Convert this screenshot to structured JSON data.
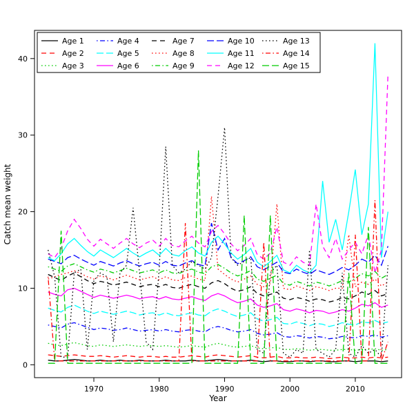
{
  "chart_data": {
    "type": "line",
    "title": "",
    "xlabel": "Year",
    "ylabel": "Catch mean weight",
    "xlim": [
      1963,
      2015
    ],
    "ylim": [
      0,
      42
    ],
    "xticks": [
      1970,
      1980,
      1990,
      2000,
      2010
    ],
    "yticks": [
      0,
      10,
      20,
      30,
      40
    ],
    "grid": false,
    "legend_position": "top-left",
    "legend_columns": 5,
    "x": [
      1963,
      1964,
      1965,
      1966,
      1967,
      1968,
      1969,
      1970,
      1971,
      1972,
      1973,
      1974,
      1975,
      1976,
      1977,
      1978,
      1979,
      1980,
      1981,
      1982,
      1983,
      1984,
      1985,
      1986,
      1987,
      1988,
      1989,
      1990,
      1991,
      1992,
      1993,
      1994,
      1995,
      1996,
      1997,
      1998,
      1999,
      2000,
      2001,
      2002,
      2003,
      2004,
      2005,
      2006,
      2007,
      2008,
      2009,
      2010,
      2011,
      2012,
      2013,
      2014,
      2015
    ],
    "series": [
      {
        "name": "Age 1",
        "color": "#000000",
        "linestyle": "solid",
        "values": [
          0.6,
          0.5,
          0.5,
          0.6,
          0.7,
          0.6,
          0.5,
          0.5,
          0.6,
          0.5,
          0.5,
          0.6,
          0.5,
          0.5,
          0.6,
          0.5,
          0.5,
          0.5,
          0.6,
          0.5,
          0.5,
          0.5,
          0.6,
          0.5,
          0.5,
          0.6,
          0.7,
          0.6,
          0.5,
          0.5,
          0.5,
          0.6,
          0.5,
          0.4,
          0.5,
          0.5,
          0.4,
          0.4,
          0.5,
          0.5,
          0.4,
          0.5,
          0.5,
          0.4,
          0.4,
          0.5,
          0.5,
          0.4,
          0.5,
          0.5,
          0.5,
          0.4,
          0.5
        ]
      },
      {
        "name": "Age 2",
        "color": "#FF0000",
        "linestyle": "dashed",
        "values": [
          1.3,
          1.2,
          1.1,
          1.2,
          1.3,
          1.2,
          1.1,
          1.1,
          1.2,
          1.1,
          1.0,
          1.1,
          1.2,
          1.1,
          1.0,
          1.1,
          1.1,
          1.0,
          1.1,
          1.0,
          1.0,
          1.1,
          1.2,
          1.1,
          1.0,
          1.2,
          1.3,
          1.2,
          1.1,
          1.0,
          1.1,
          1.2,
          1.0,
          0.9,
          1.0,
          1.1,
          0.9,
          0.9,
          1.0,
          0.9,
          0.9,
          1.0,
          0.9,
          0.8,
          0.9,
          1.0,
          0.9,
          0.9,
          1.0,
          0.9,
          1.0,
          0.9,
          1.0
        ]
      },
      {
        "name": "Age 3",
        "color": "#00CC00",
        "linestyle": "dotted",
        "values": [
          2.8,
          2.6,
          2.5,
          2.7,
          2.9,
          2.7,
          2.5,
          2.4,
          2.6,
          2.5,
          2.4,
          2.5,
          2.6,
          2.5,
          2.4,
          2.5,
          2.5,
          2.4,
          2.5,
          2.4,
          2.3,
          2.4,
          2.5,
          2.4,
          2.3,
          2.6,
          2.8,
          2.6,
          2.4,
          2.3,
          2.4,
          2.5,
          2.2,
          2.1,
          2.2,
          2.3,
          2.0,
          2.0,
          2.1,
          2.0,
          1.9,
          2.0,
          2.0,
          1.9,
          1.9,
          2.0,
          2.0,
          1.9,
          2.0,
          2.0,
          2.1,
          1.9,
          2.0
        ]
      },
      {
        "name": "Age 4",
        "color": "#0000FF",
        "linestyle": "dotdash",
        "values": [
          5.2,
          5.0,
          4.8,
          5.3,
          5.5,
          5.2,
          4.9,
          4.6,
          4.8,
          4.7,
          4.5,
          4.6,
          4.8,
          4.6,
          4.4,
          4.5,
          4.6,
          4.4,
          4.6,
          4.4,
          4.3,
          4.5,
          4.6,
          4.4,
          4.3,
          4.8,
          5.0,
          4.8,
          4.5,
          4.3,
          4.4,
          4.6,
          4.1,
          3.9,
          4.0,
          4.2,
          3.7,
          3.6,
          3.8,
          3.7,
          3.5,
          3.7,
          3.6,
          3.4,
          3.5,
          3.7,
          3.6,
          3.5,
          3.8,
          3.7,
          3.9,
          3.6,
          3.8
        ]
      },
      {
        "name": "Age 5",
        "color": "#00FFFF",
        "linestyle": "longdash",
        "values": [
          7.4,
          7.1,
          6.9,
          7.5,
          7.8,
          7.4,
          7.0,
          6.7,
          7.0,
          6.8,
          6.6,
          6.8,
          7.0,
          6.8,
          6.5,
          6.7,
          6.8,
          6.5,
          6.8,
          6.5,
          6.4,
          6.6,
          6.8,
          6.5,
          6.4,
          7.0,
          7.3,
          7.0,
          6.6,
          6.3,
          6.5,
          6.8,
          6.0,
          5.7,
          5.9,
          6.2,
          5.4,
          5.3,
          5.6,
          5.4,
          5.1,
          5.4,
          5.3,
          5.0,
          5.2,
          5.5,
          5.3,
          5.2,
          5.6,
          5.5,
          5.8,
          5.4,
          5.6
        ]
      },
      {
        "name": "Age 6",
        "color": "#FF00FF",
        "linestyle": "solid",
        "values": [
          9.5,
          9.2,
          9.0,
          9.8,
          10.0,
          9.6,
          9.2,
          8.8,
          9.1,
          8.9,
          8.7,
          8.9,
          9.1,
          8.9,
          8.6,
          8.8,
          8.9,
          8.6,
          8.9,
          8.6,
          8.5,
          8.7,
          8.9,
          8.6,
          8.4,
          9.0,
          9.3,
          9.0,
          8.5,
          8.1,
          8.3,
          8.6,
          7.8,
          7.5,
          7.7,
          8.0,
          7.2,
          7.0,
          7.3,
          7.1,
          6.8,
          7.1,
          7.0,
          6.7,
          6.9,
          7.2,
          7.0,
          7.4,
          7.9,
          7.7,
          8.1,
          7.5,
          7.8
        ]
      },
      {
        "name": "Age 7",
        "color": "#000000",
        "linestyle": "dashed",
        "values": [
          11.8,
          11.4,
          11.0,
          11.6,
          12.0,
          11.5,
          11.0,
          10.6,
          10.9,
          10.7,
          10.4,
          10.6,
          10.8,
          10.5,
          10.2,
          10.4,
          10.5,
          10.2,
          10.5,
          10.1,
          10.0,
          10.3,
          10.5,
          10.2,
          10.0,
          10.7,
          11.0,
          10.6,
          10.0,
          9.6,
          9.8,
          10.2,
          9.3,
          9.0,
          9.2,
          9.5,
          8.7,
          8.5,
          8.8,
          8.6,
          8.3,
          8.6,
          8.5,
          8.2,
          8.4,
          8.8,
          8.6,
          9.0,
          9.5,
          9.2,
          9.7,
          9.0,
          9.3
        ]
      },
      {
        "name": "Age 8",
        "color": "#FF0000",
        "linestyle": "dotted",
        "values": [
          11.2,
          11.5,
          11.8,
          12.0,
          12.3,
          11.9,
          11.5,
          11.2,
          11.6,
          11.4,
          11.1,
          11.4,
          11.7,
          11.4,
          11.1,
          11.3,
          11.5,
          11.1,
          11.5,
          11.1,
          11.0,
          11.4,
          11.6,
          11.2,
          11.0,
          22.0,
          12.5,
          11.8,
          11.2,
          10.8,
          11.2,
          11.6,
          10.5,
          10.2,
          10.6,
          21.0,
          10.0,
          9.8,
          10.3,
          10.0,
          9.7,
          10.2,
          10.0,
          9.7,
          10.0,
          10.0,
          17.0,
          10.2,
          10.8,
          10.5,
          11.2,
          10.3,
          10.8
        ]
      },
      {
        "name": "Age 9",
        "color": "#00CC00",
        "linestyle": "dotdash",
        "values": [
          12.8,
          12.5,
          12.2,
          12.9,
          13.2,
          12.8,
          12.4,
          12.1,
          12.5,
          12.3,
          12.0,
          12.3,
          12.6,
          12.3,
          12.0,
          12.2,
          12.4,
          12.0,
          12.4,
          12.0,
          11.9,
          12.3,
          12.5,
          12.1,
          11.9,
          12.8,
          13.1,
          12.6,
          12.0,
          11.6,
          11.9,
          12.3,
          11.2,
          10.9,
          11.3,
          11.7,
          10.6,
          10.4,
          10.9,
          10.6,
          10.3,
          10.8,
          10.6,
          10.3,
          10.6,
          11.0,
          10.8,
          11.3,
          11.9,
          11.6,
          12.2,
          11.3,
          11.8
        ]
      },
      {
        "name": "Age 10",
        "color": "#0000FF",
        "linestyle": "longdash",
        "values": [
          13.8,
          13.5,
          13.2,
          14.0,
          14.3,
          13.8,
          13.4,
          13.0,
          13.5,
          13.2,
          12.9,
          13.3,
          13.6,
          13.2,
          12.9,
          13.2,
          13.4,
          13.0,
          13.5,
          13.0,
          12.9,
          13.3,
          13.6,
          13.1,
          12.9,
          18.5,
          15.0,
          16.5,
          14.0,
          13.2,
          13.6,
          14.1,
          12.8,
          12.4,
          12.9,
          13.4,
          12.1,
          11.9,
          12.5,
          12.1,
          11.8,
          12.4,
          12.1,
          11.8,
          12.2,
          12.7,
          12.4,
          13.0,
          13.8,
          13.4,
          14.3,
          13.0,
          15.5
        ]
      },
      {
        "name": "Age 11",
        "color": "#00FFFF",
        "linestyle": "solid",
        "values": [
          14.0,
          13.6,
          14.5,
          15.8,
          16.5,
          15.6,
          14.8,
          14.2,
          15.0,
          14.5,
          14.0,
          14.6,
          15.2,
          14.6,
          14.1,
          14.6,
          15.0,
          14.3,
          15.2,
          14.4,
          14.2,
          14.9,
          15.4,
          14.6,
          14.2,
          16.0,
          16.8,
          15.8,
          14.6,
          13.8,
          14.4,
          15.2,
          13.4,
          12.8,
          13.5,
          14.3,
          12.4,
          12.0,
          13.0,
          12.4,
          12.0,
          13.0,
          24.0,
          16.0,
          19.0,
          15.0,
          20.0,
          25.5,
          17.0,
          21.0,
          42.0,
          14.0,
          20.0
        ]
      },
      {
        "name": "Age 12",
        "color": "#FF00FF",
        "linestyle": "dashed",
        "values": [
          14.5,
          14.0,
          15.2,
          17.5,
          19.0,
          17.8,
          16.4,
          15.5,
          16.4,
          15.8,
          15.2,
          15.9,
          16.5,
          15.8,
          15.3,
          15.9,
          16.3,
          15.5,
          16.5,
          15.6,
          15.4,
          16.2,
          16.8,
          15.9,
          15.4,
          17.4,
          18.2,
          17.1,
          15.8,
          14.9,
          15.6,
          16.5,
          14.4,
          13.8,
          14.6,
          18.0,
          13.4,
          13.0,
          14.1,
          13.4,
          13.0,
          21.0,
          15.5,
          14.0,
          16.5,
          13.8,
          15.0,
          16.0,
          14.5,
          17.0,
          12.0,
          15.0,
          38.0
        ]
      },
      {
        "name": "Age 13",
        "color": "#000000",
        "linestyle": "dotted",
        "values": [
          15.0,
          11.5,
          1.0,
          1.0,
          12.0,
          12.5,
          2.0,
          11.0,
          12.0,
          11.5,
          3.0,
          12.0,
          13.0,
          20.5,
          12.0,
          3.0,
          2.0,
          12.5,
          28.5,
          13.0,
          12.0,
          12.5,
          13.5,
          13.0,
          12.5,
          14.0,
          22.0,
          31.0,
          14.0,
          13.0,
          13.5,
          14.0,
          2.0,
          1.5,
          12.0,
          13.0,
          1.5,
          1.0,
          2.0,
          1.5,
          15.0,
          2.0,
          1.5,
          1.0,
          2.0,
          12.0,
          1.5,
          1.0,
          2.5,
          1.5,
          2.0,
          1.0,
          13.0
        ]
      },
      {
        "name": "Age 14",
        "color": "#FF0000",
        "linestyle": "dotdash",
        "values": [
          11.5,
          0.5,
          0.5,
          0.5,
          0.5,
          0.5,
          0.5,
          0.5,
          0.5,
          0.5,
          0.5,
          0.5,
          0.5,
          0.5,
          0.5,
          0.5,
          0.5,
          0.5,
          0.5,
          0.5,
          0.5,
          18.5,
          0.5,
          0.5,
          0.5,
          0.5,
          0.5,
          0.5,
          0.5,
          0.5,
          0.5,
          0.5,
          0.5,
          16.0,
          0.5,
          0.5,
          0.5,
          0.5,
          0.5,
          0.5,
          0.5,
          0.5,
          0.5,
          0.5,
          0.5,
          0.5,
          0.5,
          17.0,
          0.5,
          0.5,
          21.5,
          0.5,
          3.0
        ]
      },
      {
        "name": "Age 15",
        "color": "#00CC00",
        "linestyle": "longdash",
        "values": [
          0.2,
          0.2,
          17.5,
          0.2,
          0.2,
          0.2,
          0.2,
          0.2,
          0.2,
          0.2,
          0.2,
          0.2,
          0.2,
          0.2,
          0.2,
          0.2,
          0.2,
          0.2,
          0.2,
          0.2,
          0.2,
          0.2,
          0.2,
          28.0,
          0.2,
          0.2,
          0.2,
          0.2,
          0.2,
          0.2,
          19.5,
          0.2,
          0.2,
          0.2,
          19.5,
          0.2,
          0.2,
          0.2,
          0.2,
          0.2,
          0.2,
          0.2,
          0.2,
          0.2,
          0.2,
          0.2,
          12.0,
          0.2,
          0.2,
          18.0,
          0.2,
          0.2,
          0.2
        ]
      }
    ]
  }
}
